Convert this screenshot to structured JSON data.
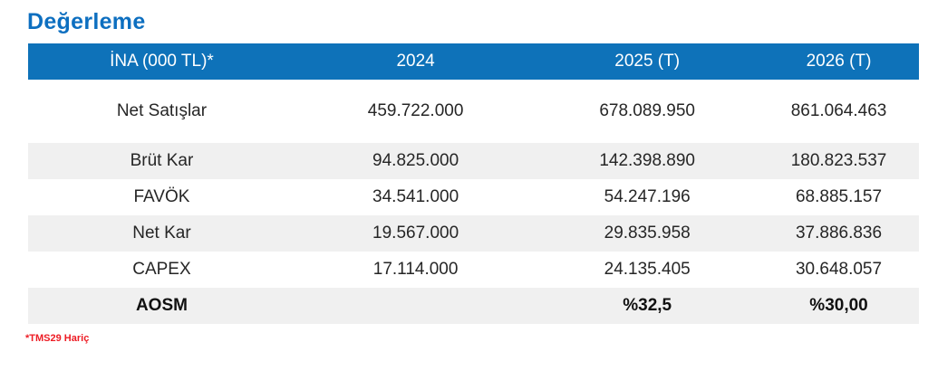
{
  "page": {
    "title": "Değerleme",
    "footnote": "*TMS29 Hariç"
  },
  "colors": {
    "title_blue": "#0d6fc0",
    "accent_blue": "#0e72b9",
    "row_alt_gray": "#f0f0f0",
    "footnote_red": "#ed1c24",
    "body_text": "#262626"
  },
  "table": {
    "columns": [
      "İNA (000 TL)*",
      "2024",
      "2025 (T)",
      "2026 (T)"
    ],
    "rows": [
      {
        "label": "Net Satışlar",
        "values": [
          "459.722.000",
          "678.089.950",
          "861.064.463"
        ],
        "bold": false
      },
      {
        "label": "Brüt Kar",
        "values": [
          "94.825.000",
          "142.398.890",
          "180.823.537"
        ],
        "bold": false
      },
      {
        "label": "FAVÖK",
        "values": [
          "34.541.000",
          "54.247.196",
          "68.885.157"
        ],
        "bold": false
      },
      {
        "label": "Net Kar",
        "values": [
          "19.567.000",
          "29.835.958",
          "37.886.836"
        ],
        "bold": false
      },
      {
        "label": "CAPEX",
        "values": [
          "17.114.000",
          "24.135.405",
          "30.648.057"
        ],
        "bold": false
      },
      {
        "label": "AOSM",
        "values": [
          "",
          "%32,5",
          "%30,00"
        ],
        "bold": true
      }
    ]
  }
}
